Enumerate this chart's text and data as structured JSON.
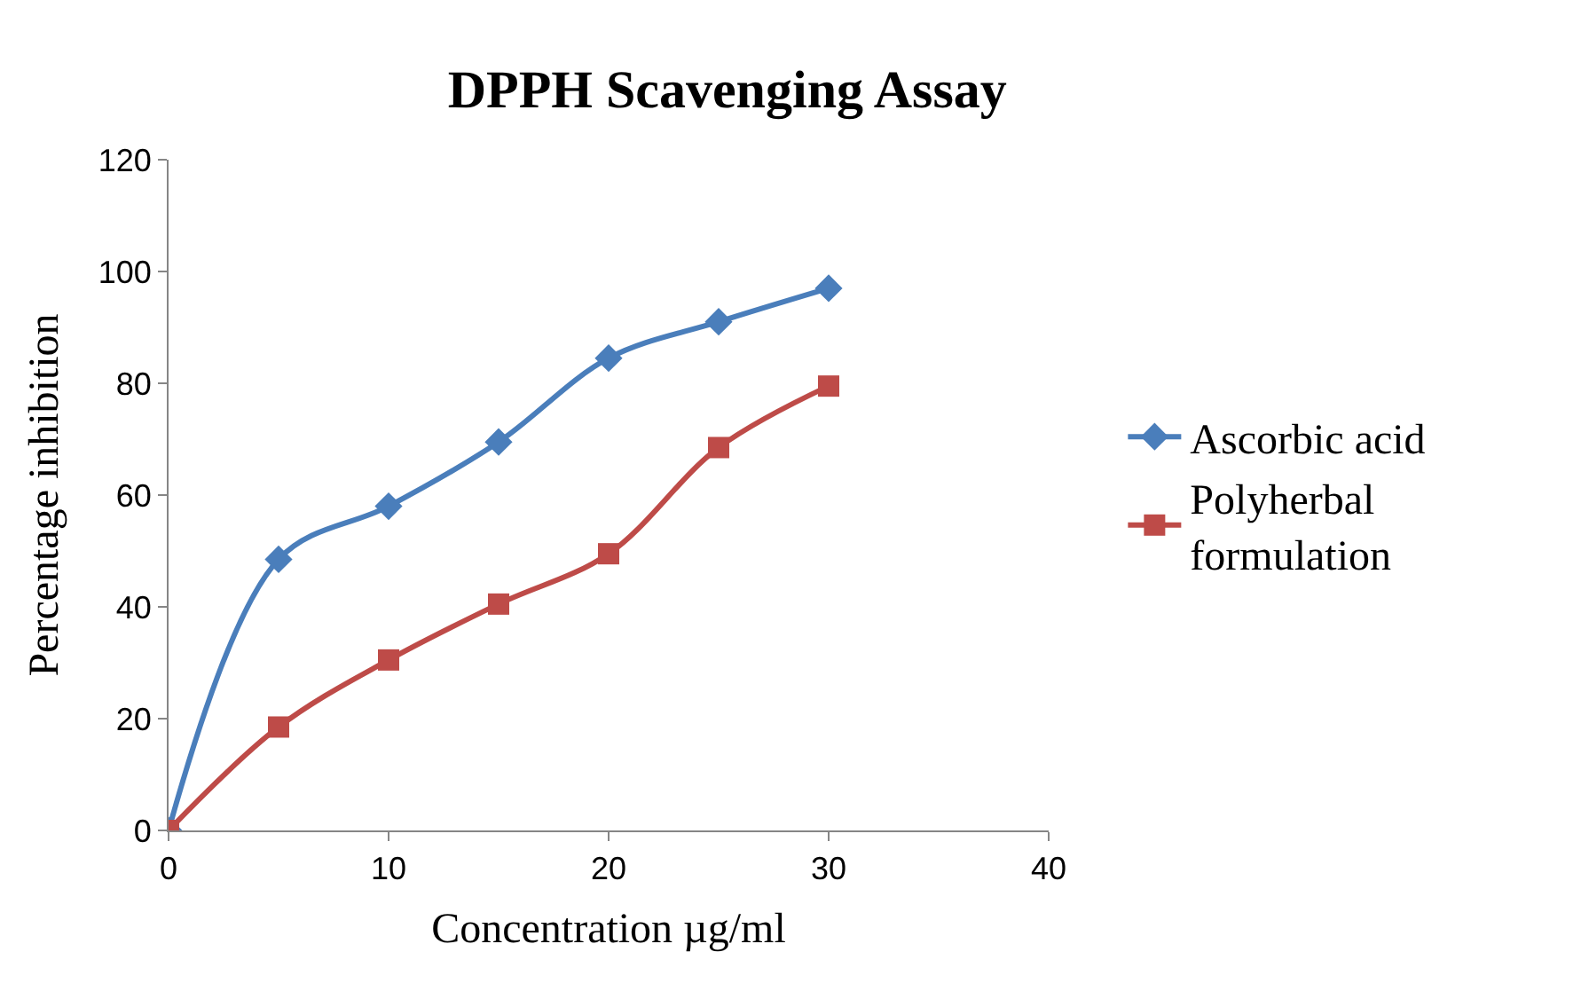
{
  "chart_data": {
    "type": "line",
    "title": "DPPH Scavenging Assay",
    "xlabel": "Concentration µg/ml",
    "ylabel": "Percentage inhibition",
    "x": [
      0,
      5,
      10,
      15,
      20,
      25,
      30
    ],
    "series": [
      {
        "name": "Ascorbic acid",
        "color": "#4a7ebb",
        "marker": "diamond",
        "values": [
          0,
          48.5,
          58,
          69.5,
          84.5,
          91,
          97
        ]
      },
      {
        "name": "Polyherbal formulation",
        "color": "#be4b48",
        "marker": "square",
        "values": [
          0,
          18.5,
          30.5,
          40.5,
          49.5,
          68.5,
          79.5
        ]
      }
    ],
    "xlim": [
      0,
      40
    ],
    "xticks": [
      0,
      10,
      20,
      30,
      40
    ],
    "ylim": [
      0,
      120
    ],
    "yticks": [
      0,
      20,
      40,
      60,
      80,
      100,
      120
    ],
    "legend": "right",
    "line_style": "solid"
  }
}
